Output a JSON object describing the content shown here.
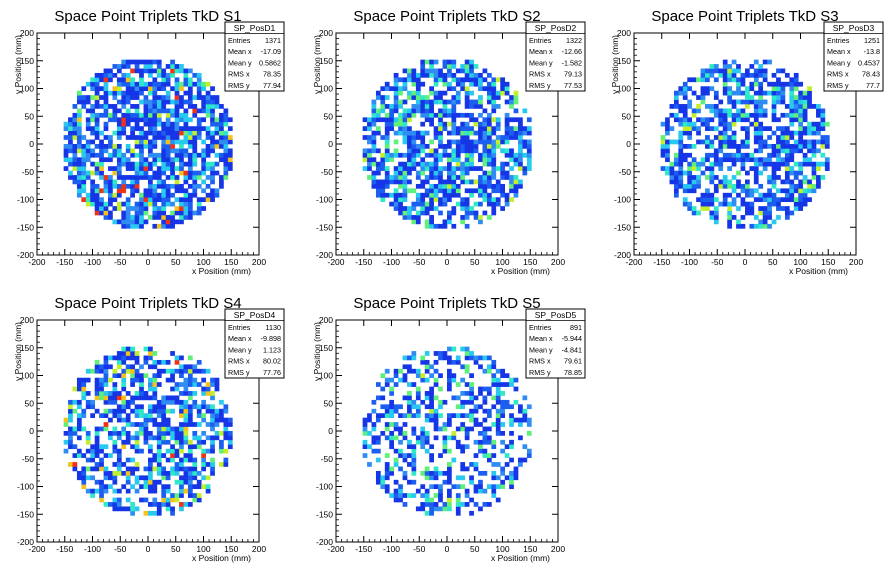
{
  "chart_data": [
    {
      "type": "heatmap",
      "title": "Space Point Triplets TkD S1",
      "xlabel": "x Position (mm)",
      "ylabel": "y Position (mm)",
      "xlim": [
        -200,
        200
      ],
      "ylim": [
        -200,
        200
      ],
      "x_ticks": [
        -200,
        -150,
        -100,
        -50,
        0,
        50,
        100,
        150,
        200
      ],
      "y_ticks": [
        -200,
        -150,
        -100,
        -50,
        0,
        50,
        100,
        150,
        200
      ],
      "grid": false,
      "color_scheme": "rainbow (blue low → red high)",
      "coverage_radius": 155,
      "stats": {
        "name": "SP_PosD1",
        "rows": [
          {
            "label": "Entries",
            "value": "1371"
          },
          {
            "label": "Mean x",
            "value": "-17.09"
          },
          {
            "label": "Mean y",
            "value": "0.5862"
          },
          {
            "label": "RMS x",
            "value": "78.35"
          },
          {
            "label": "RMS y",
            "value": "77.94"
          }
        ]
      }
    },
    {
      "type": "heatmap",
      "title": "Space Point Triplets TkD S2",
      "xlabel": "x Position (mm)",
      "ylabel": "y Position (mm)",
      "xlim": [
        -200,
        200
      ],
      "ylim": [
        -200,
        200
      ],
      "x_ticks": [
        -200,
        -150,
        -100,
        -50,
        0,
        50,
        100,
        150,
        200
      ],
      "y_ticks": [
        -200,
        -150,
        -100,
        -50,
        0,
        50,
        100,
        150,
        200
      ],
      "grid": false,
      "color_scheme": "rainbow (blue low → red high)",
      "coverage_radius": 155,
      "stats": {
        "name": "SP_PosD2",
        "rows": [
          {
            "label": "Entries",
            "value": "1322"
          },
          {
            "label": "Mean x",
            "value": "-12.66"
          },
          {
            "label": "Mean y",
            "value": "-1.582"
          },
          {
            "label": "RMS x",
            "value": "79.13"
          },
          {
            "label": "RMS y",
            "value": "77.53"
          }
        ]
      }
    },
    {
      "type": "heatmap",
      "title": "Space Point Triplets TkD S3",
      "xlabel": "x Position (mm)",
      "ylabel": "y Position (mm)",
      "xlim": [
        -200,
        200
      ],
      "ylim": [
        -200,
        200
      ],
      "x_ticks": [
        -200,
        -150,
        -100,
        -50,
        0,
        50,
        100,
        150,
        200
      ],
      "y_ticks": [
        -200,
        -150,
        -100,
        -50,
        0,
        50,
        100,
        150,
        200
      ],
      "grid": false,
      "color_scheme": "rainbow (blue low → red high)",
      "coverage_radius": 155,
      "stats": {
        "name": "SP_PosD3",
        "rows": [
          {
            "label": "Entries",
            "value": "1251"
          },
          {
            "label": "Mean x",
            "value": "-13.8"
          },
          {
            "label": "Mean y",
            "value": "0.4537"
          },
          {
            "label": "RMS x",
            "value": "78.43"
          },
          {
            "label": "RMS y",
            "value": "77.7"
          }
        ]
      }
    },
    {
      "type": "heatmap",
      "title": "Space Point Triplets TkD S4",
      "xlabel": "x Position (mm)",
      "ylabel": "y Position (mm)",
      "xlim": [
        -200,
        200
      ],
      "ylim": [
        -200,
        200
      ],
      "x_ticks": [
        -200,
        -150,
        -100,
        -50,
        0,
        50,
        100,
        150,
        200
      ],
      "y_ticks": [
        -200,
        -150,
        -100,
        -50,
        0,
        50,
        100,
        150,
        200
      ],
      "grid": false,
      "color_scheme": "rainbow (blue low → red high)",
      "coverage_radius": 155,
      "stats": {
        "name": "SP_PosD4",
        "rows": [
          {
            "label": "Entries",
            "value": "1130"
          },
          {
            "label": "Mean x",
            "value": "-9.898"
          },
          {
            "label": "Mean y",
            "value": "1.123"
          },
          {
            "label": "RMS x",
            "value": "80.02"
          },
          {
            "label": "RMS y",
            "value": "77.76"
          }
        ]
      }
    },
    {
      "type": "heatmap",
      "title": "Space Point Triplets TkD S5",
      "xlabel": "x Position (mm)",
      "ylabel": "y Position (mm)",
      "xlim": [
        -200,
        200
      ],
      "ylim": [
        -200,
        200
      ],
      "x_ticks": [
        -200,
        -150,
        -100,
        -50,
        0,
        50,
        100,
        150,
        200
      ],
      "y_ticks": [
        -200,
        -150,
        -100,
        -50,
        0,
        50,
        100,
        150,
        200
      ],
      "grid": false,
      "color_scheme": "rainbow (blue low → red high)",
      "coverage_radius": 155,
      "stats": {
        "name": "SP_PosD5",
        "rows": [
          {
            "label": "Entries",
            "value": "891"
          },
          {
            "label": "Mean x",
            "value": "-5.944"
          },
          {
            "label": "Mean y",
            "value": "-4.841"
          },
          {
            "label": "RMS x",
            "value": "79.61"
          },
          {
            "label": "RMS y",
            "value": "78.85"
          }
        ]
      }
    }
  ]
}
